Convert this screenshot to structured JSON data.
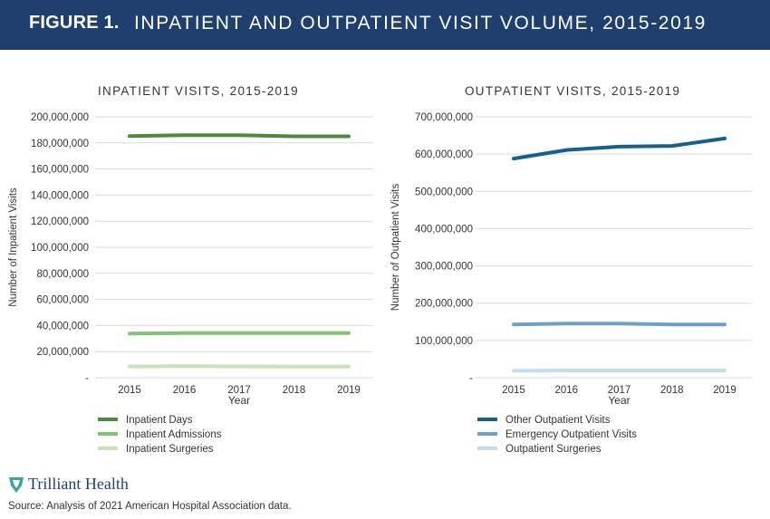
{
  "header": {
    "figure_label": "FIGURE 1.",
    "title": "INPATIENT AND OUTPATIENT VISIT VOLUME, 2015-2019",
    "background": "#1f3f6e"
  },
  "chart_data": [
    {
      "type": "line",
      "title": "INPATIENT VISITS, 2015-2019",
      "xlabel": "Year",
      "ylabel": "Number of Inpatient Visits",
      "x": [
        "2015",
        "2016",
        "2017",
        "2018",
        "2019"
      ],
      "ylim": [
        0,
        200000000
      ],
      "yticks": [
        "-",
        "20,000,000",
        "40,000,000",
        "60,000,000",
        "80,000,000",
        "100,000,000",
        "120,000,000",
        "140,000,000",
        "160,000,000",
        "180,000,000",
        "200,000,000"
      ],
      "grid": true,
      "legend_position": "bottom",
      "series": [
        {
          "name": "Inpatient Days",
          "color": "#4e8a3e",
          "values": [
            185200000,
            186000000,
            186000000,
            185100000,
            185100000
          ]
        },
        {
          "name": "Inpatient Admissions",
          "color": "#7fc571",
          "values": [
            33800000,
            34200000,
            34200000,
            34200000,
            34200000
          ]
        },
        {
          "name": "Inpatient Surgeries",
          "color": "#c5e3b5",
          "values": [
            8600000,
            8800000,
            8700000,
            8500000,
            8500000
          ]
        }
      ]
    },
    {
      "type": "line",
      "title": "OUTPATIENT VISITS, 2015-2019",
      "xlabel": "Year",
      "ylabel": "Number of Outpatient Visits",
      "x": [
        "2015",
        "2016",
        "2017",
        "2018",
        "2019"
      ],
      "ylim": [
        0,
        700000000
      ],
      "yticks": [
        "-",
        "100,000,000",
        "200,000,000",
        "300,000,000",
        "400,000,000",
        "500,000,000",
        "600,000,000",
        "700,000,000"
      ],
      "grid": true,
      "legend_position": "bottom",
      "series": [
        {
          "name": "Other Outpatient Visits",
          "color": "#16608f",
          "values": [
            588000000,
            611000000,
            620000000,
            622000000,
            642000000
          ]
        },
        {
          "name": "Emergency Outpatient Visits",
          "color": "#6e9fca",
          "values": [
            143000000,
            145000000,
            145000000,
            143000000,
            143000000
          ]
        },
        {
          "name": "Outpatient Surgeries",
          "color": "#c5dcef",
          "values": [
            18500000,
            19500000,
            19500000,
            19500000,
            19500000
          ]
        }
      ]
    }
  ],
  "footer": {
    "logo_text": "Trilliant Health",
    "logo_icon": "trilliant-shield-icon",
    "source": "Source: Analysis of 2021 American Hospital Association data."
  }
}
